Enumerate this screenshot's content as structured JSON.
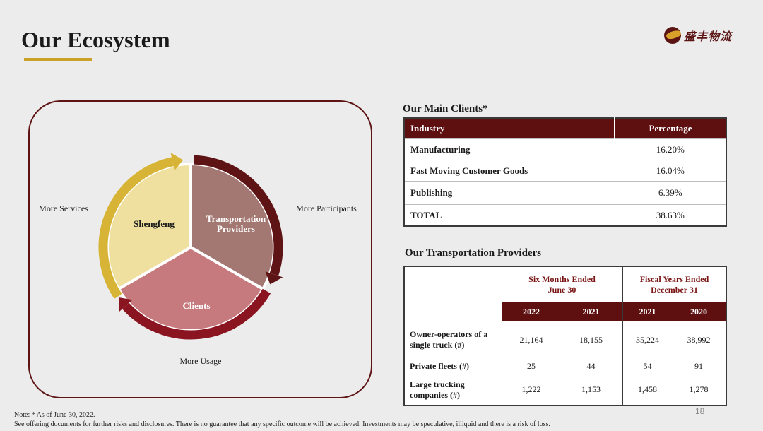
{
  "slide": {
    "title": "Our Ecosystem",
    "logo_text": "盛丰物流",
    "page_number": "18"
  },
  "ecosystem": {
    "segments": {
      "shengfeng": "Shengfeng",
      "transport": "Transportation Providers",
      "clients": "Clients"
    },
    "outer_labels": {
      "left": "More Services",
      "right": "More Participants",
      "bottom": "More Usage"
    },
    "colors": {
      "shengfeng_fill": "#efe0a0",
      "shengfeng_ring": "#d7b436",
      "transport_fill": "#a37873",
      "transport_ring": "#5e1414",
      "clients_fill": "#c77a7d",
      "clients_ring": "#8a1420"
    }
  },
  "clients": {
    "title": "Our Main Clients*",
    "headers": [
      "Industry",
      "Percentage"
    ],
    "rows": [
      {
        "industry": "Manufacturing",
        "percentage": "16.20%"
      },
      {
        "industry": "Fast Moving Customer Goods",
        "percentage": "16.04%"
      },
      {
        "industry": "Publishing",
        "percentage": "6.39%"
      },
      {
        "industry": "TOTAL",
        "percentage": "38.63%"
      }
    ]
  },
  "providers": {
    "title": "Our Transportation Providers",
    "period_headers": {
      "six_months_l1": "Six Months Ended",
      "six_months_l2": "June 30",
      "fiscal_l1": "Fiscal Years Ended",
      "fiscal_l2": "December 31"
    },
    "years": [
      "2022",
      "2021",
      "2021",
      "2020"
    ],
    "rows": [
      {
        "label_l1": "Owner-operators of a",
        "label_l2": "single truck (#)",
        "values": [
          "21,164",
          "18,155",
          "35,224",
          "38,992"
        ]
      },
      {
        "label_l1": "Private fleets (#)",
        "label_l2": "",
        "values": [
          "25",
          "44",
          "54",
          "91"
        ]
      },
      {
        "label_l1": "Large trucking",
        "label_l2": "companies (#)",
        "values": [
          "1,222",
          "1,153",
          "1,458",
          "1,278"
        ]
      }
    ]
  },
  "note": {
    "line1": "Note: * As of June 30, 2022.",
    "line2": "See offering documents for further risks and disclosures. There is no guarantee that any specific outcome will be achieved. Investments may be speculative, illiquid and there is a risk of loss."
  }
}
